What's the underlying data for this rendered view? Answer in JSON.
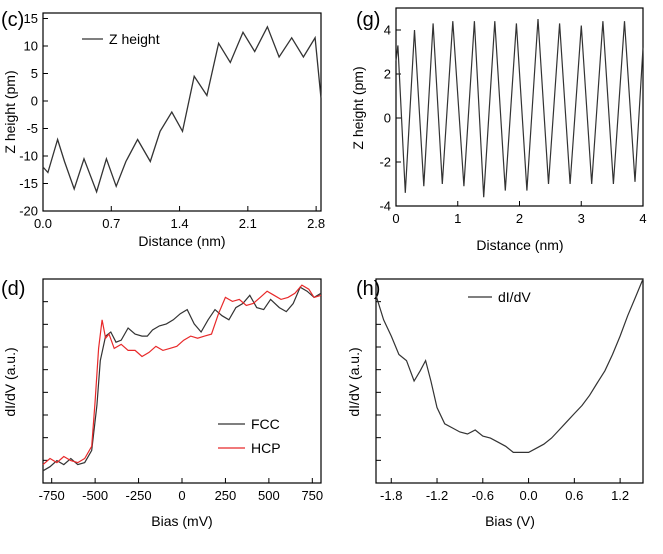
{
  "figure_colors": {
    "axis": "#000000",
    "black_series": "#333333",
    "red_series": "#e8292a"
  },
  "chart_data": [
    {
      "panel": "(c)",
      "type": "line",
      "title": "",
      "xlabel": "Distance (nm)",
      "ylabel": "Z height (pm)",
      "xlim": [
        0.0,
        2.85
      ],
      "ylim": [
        -20,
        16
      ],
      "xticks": [
        0.0,
        0.7,
        1.4,
        2.1,
        2.8
      ],
      "xtick_labels": [
        "0.0",
        "0.7",
        "1.4",
        "2.1",
        "2.8"
      ],
      "yticks": [
        -20,
        -15,
        -10,
        -5,
        0,
        5,
        10,
        15
      ],
      "ytick_labels": [
        "-20",
        "-15",
        "-10",
        "-5",
        "0",
        "5",
        "10",
        "15"
      ],
      "legend": {
        "entries": [
          "Z height"
        ],
        "placement": "top-left"
      },
      "series": [
        {
          "name": "Z height",
          "color": "#333333",
          "x": [
            0.0,
            0.05,
            0.15,
            0.22,
            0.32,
            0.42,
            0.55,
            0.65,
            0.75,
            0.85,
            0.97,
            1.1,
            1.2,
            1.32,
            1.43,
            1.55,
            1.68,
            1.8,
            1.92,
            2.05,
            2.17,
            2.3,
            2.42,
            2.55,
            2.67,
            2.79,
            2.85
          ],
          "values": [
            -12,
            -13,
            -7,
            -11,
            -16,
            -10.5,
            -16.5,
            -10.5,
            -15.5,
            -11,
            -7,
            -11,
            -5.5,
            -2,
            -5.5,
            4.5,
            1,
            10.5,
            7,
            12.5,
            9,
            13.5,
            8,
            11.5,
            8,
            11.5,
            0.5
          ]
        }
      ]
    },
    {
      "panel": "(g)",
      "type": "line",
      "title": "",
      "xlabel": "Distance (nm)",
      "ylabel": "Z height (pm)",
      "xlim": [
        0,
        4
      ],
      "ylim": [
        -4,
        5
      ],
      "xticks": [
        0,
        1,
        2,
        3,
        4
      ],
      "xtick_labels": [
        "0",
        "1",
        "2",
        "3",
        "4"
      ],
      "yticks": [
        -4,
        -2,
        0,
        2,
        4
      ],
      "ytick_labels": [
        "-4",
        "-2",
        "0",
        "2",
        "4"
      ],
      "series": [
        {
          "name": "Z height",
          "color": "#333333",
          "x": [
            0.0,
            0.03,
            0.15,
            0.3,
            0.45,
            0.6,
            0.75,
            0.92,
            1.1,
            1.27,
            1.42,
            1.6,
            1.77,
            1.95,
            2.12,
            2.3,
            2.47,
            2.65,
            2.82,
            3.0,
            3.17,
            3.35,
            3.52,
            3.7,
            3.87,
            4.0
          ],
          "values": [
            2.6,
            3.3,
            -3.4,
            4.0,
            -3.1,
            4.3,
            -3.0,
            4.4,
            -3.1,
            4.4,
            -3.6,
            4.4,
            -3.3,
            4.3,
            -3.3,
            4.5,
            -3.0,
            4.3,
            -3.0,
            4.2,
            -3.0,
            4.4,
            -3.0,
            4.4,
            -2.9,
            3.2
          ]
        }
      ]
    },
    {
      "panel": "(d)",
      "type": "line",
      "title": "",
      "xlabel": "Bias (mV)",
      "ylabel": "dI/dV (a.u.)",
      "xlim": [
        -800,
        800
      ],
      "ylim": [
        0,
        1
      ],
      "xticks": [
        -750,
        -500,
        -250,
        0,
        250,
        500,
        750
      ],
      "xtick_labels": [
        "-750",
        "-500",
        "-250",
        "0",
        "250",
        "500",
        "750"
      ],
      "ytick_labels": [],
      "legend": {
        "entries": [
          "FCC",
          "HCP"
        ],
        "placement": "bottom-right"
      },
      "series": [
        {
          "name": "FCC",
          "color": "#333333",
          "x": [
            -800,
            -760,
            -720,
            -680,
            -640,
            -600,
            -560,
            -520,
            -490,
            -470,
            -440,
            -410,
            -380,
            -350,
            -310,
            -270,
            -230,
            -200,
            -170,
            -130,
            -90,
            -50,
            -10,
            30,
            70,
            110,
            150,
            190,
            230,
            270,
            310,
            350,
            390,
            430,
            470,
            510,
            560,
            600,
            640,
            680,
            720,
            760,
            800
          ],
          "values": [
            0.06,
            0.08,
            0.11,
            0.09,
            0.12,
            0.09,
            0.1,
            0.16,
            0.38,
            0.6,
            0.72,
            0.74,
            0.69,
            0.7,
            0.76,
            0.73,
            0.72,
            0.72,
            0.75,
            0.77,
            0.78,
            0.8,
            0.83,
            0.85,
            0.78,
            0.74,
            0.8,
            0.85,
            0.82,
            0.8,
            0.86,
            0.88,
            0.92,
            0.86,
            0.85,
            0.9,
            0.86,
            0.84,
            0.88,
            0.96,
            0.94,
            0.91,
            0.93
          ]
        },
        {
          "name": "HCP",
          "color": "#e8292a",
          "x": [
            -800,
            -760,
            -720,
            -680,
            -640,
            -600,
            -560,
            -520,
            -500,
            -480,
            -460,
            -440,
            -420,
            -390,
            -350,
            -310,
            -270,
            -230,
            -190,
            -150,
            -110,
            -70,
            -30,
            10,
            50,
            90,
            130,
            170,
            210,
            250,
            290,
            330,
            370,
            410,
            450,
            490,
            530,
            570,
            610,
            650,
            690,
            730,
            760,
            800
          ],
          "values": [
            0.09,
            0.12,
            0.1,
            0.13,
            0.11,
            0.1,
            0.12,
            0.18,
            0.4,
            0.66,
            0.8,
            0.71,
            0.73,
            0.66,
            0.68,
            0.65,
            0.65,
            0.62,
            0.64,
            0.67,
            0.65,
            0.66,
            0.67,
            0.7,
            0.72,
            0.71,
            0.72,
            0.73,
            0.83,
            0.91,
            0.89,
            0.9,
            0.87,
            0.88,
            0.91,
            0.94,
            0.92,
            0.9,
            0.91,
            0.93,
            0.97,
            0.95,
            0.91,
            0.92
          ]
        }
      ]
    },
    {
      "panel": "(h)",
      "type": "line",
      "title": "",
      "xlabel": "Bias (V)",
      "ylabel": "dI/dV (a.u.)",
      "xlim": [
        -2.0,
        1.5
      ],
      "ylim": [
        0,
        1
      ],
      "xticks": [
        -1.8,
        -1.2,
        -0.6,
        0.0,
        0.6,
        1.2
      ],
      "xtick_labels": [
        "-1.8",
        "-1.2",
        "-0.6",
        "0.0",
        "0.6",
        "1.2"
      ],
      "ytick_labels": [],
      "legend": {
        "entries": [
          "dI/dV"
        ],
        "placement": "top-center"
      },
      "series": [
        {
          "name": "dI/dV",
          "color": "#333333",
          "x": [
            -2.0,
            -1.9,
            -1.8,
            -1.7,
            -1.6,
            -1.5,
            -1.42,
            -1.35,
            -1.28,
            -1.2,
            -1.1,
            -1.0,
            -0.9,
            -0.8,
            -0.7,
            -0.6,
            -0.5,
            -0.4,
            -0.3,
            -0.2,
            -0.1,
            0.0,
            0.1,
            0.2,
            0.3,
            0.4,
            0.5,
            0.6,
            0.7,
            0.8,
            0.9,
            1.0,
            1.1,
            1.2,
            1.3,
            1.4,
            1.5
          ],
          "values": [
            0.92,
            0.8,
            0.72,
            0.63,
            0.6,
            0.5,
            0.55,
            0.6,
            0.5,
            0.37,
            0.29,
            0.27,
            0.25,
            0.24,
            0.26,
            0.23,
            0.22,
            0.2,
            0.18,
            0.15,
            0.15,
            0.15,
            0.17,
            0.19,
            0.22,
            0.26,
            0.3,
            0.34,
            0.38,
            0.43,
            0.49,
            0.55,
            0.63,
            0.72,
            0.82,
            0.91,
            1.0
          ]
        }
      ]
    }
  ]
}
